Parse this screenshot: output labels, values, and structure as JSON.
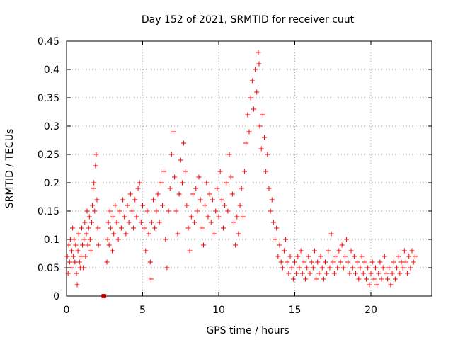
{
  "chart_data": {
    "type": "scatter",
    "title": "Day 152 of 2021, SRMTID for receiver cuut",
    "xlabel": "GPS time / hours",
    "ylabel": "SRMTID / TECUs",
    "xlim": [
      0,
      24
    ],
    "ylim": [
      0,
      0.45
    ],
    "x_ticks": [
      0,
      5,
      10,
      15,
      20
    ],
    "x_tick_labels": [
      "0",
      "5",
      "10",
      "15",
      "20"
    ],
    "y_ticks": [
      0,
      0.05,
      0.1,
      0.15,
      0.2,
      0.25,
      0.3,
      0.35,
      0.4,
      0.45
    ],
    "y_tick_labels": [
      "0",
      "0.05",
      "0.1",
      "0.15",
      "0.2",
      "0.25",
      "0.3",
      "0.35",
      "0.4",
      "0.45"
    ],
    "grid": true,
    "marker": "plus",
    "color": "#ff0000",
    "gap_marker": {
      "x": [
        2.3,
        2.6
      ],
      "y": 0
    },
    "series": [
      {
        "name": "SRMTID",
        "points": [
          [
            0.0,
            0.05
          ],
          [
            0.05,
            0.07
          ],
          [
            0.1,
            0.04
          ],
          [
            0.15,
            0.09
          ],
          [
            0.2,
            0.06
          ],
          [
            0.25,
            0.1
          ],
          [
            0.3,
            0.05
          ],
          [
            0.35,
            0.08
          ],
          [
            0.4,
            0.12
          ],
          [
            0.45,
            0.07
          ],
          [
            0.5,
            0.1
          ],
          [
            0.55,
            0.06
          ],
          [
            0.6,
            0.09
          ],
          [
            0.65,
            0.04
          ],
          [
            0.7,
            0.02
          ],
          [
            0.75,
            0.08
          ],
          [
            0.8,
            0.11
          ],
          [
            0.85,
            0.06
          ],
          [
            0.9,
            0.05
          ],
          [
            0.95,
            0.07
          ],
          [
            1.0,
            0.12
          ],
          [
            1.05,
            0.09
          ],
          [
            1.1,
            0.05
          ],
          [
            1.15,
            0.1
          ],
          [
            1.2,
            0.13
          ],
          [
            1.25,
            0.07
          ],
          [
            1.3,
            0.11
          ],
          [
            1.35,
            0.15
          ],
          [
            1.4,
            0.09
          ],
          [
            1.45,
            0.12
          ],
          [
            1.5,
            0.14
          ],
          [
            1.55,
            0.1
          ],
          [
            1.6,
            0.08
          ],
          [
            1.65,
            0.13
          ],
          [
            1.7,
            0.16
          ],
          [
            1.75,
            0.19
          ],
          [
            1.8,
            0.2
          ],
          [
            1.85,
            0.15
          ],
          [
            1.9,
            0.23
          ],
          [
            1.95,
            0.25
          ],
          [
            2.0,
            0.17
          ],
          [
            2.05,
            0.12
          ],
          [
            2.1,
            0.09
          ],
          [
            2.65,
            0.06
          ],
          [
            2.7,
            0.1
          ],
          [
            2.75,
            0.13
          ],
          [
            2.8,
            0.09
          ],
          [
            2.85,
            0.15
          ],
          [
            2.9,
            0.12
          ],
          [
            3.0,
            0.08
          ],
          [
            3.05,
            0.14
          ],
          [
            3.1,
            0.11
          ],
          [
            3.2,
            0.16
          ],
          [
            3.3,
            0.13
          ],
          [
            3.4,
            0.1
          ],
          [
            3.5,
            0.15
          ],
          [
            3.6,
            0.12
          ],
          [
            3.7,
            0.17
          ],
          [
            3.8,
            0.14
          ],
          [
            3.9,
            0.11
          ],
          [
            4.0,
            0.16
          ],
          [
            4.1,
            0.13
          ],
          [
            4.2,
            0.18
          ],
          [
            4.3,
            0.15
          ],
          [
            4.4,
            0.12
          ],
          [
            4.5,
            0.17
          ],
          [
            4.6,
            0.14
          ],
          [
            4.7,
            0.19
          ],
          [
            4.8,
            0.2
          ],
          [
            4.9,
            0.13
          ],
          [
            5.0,
            0.16
          ],
          [
            5.1,
            0.12
          ],
          [
            5.2,
            0.08
          ],
          [
            5.3,
            0.15
          ],
          [
            5.4,
            0.11
          ],
          [
            5.5,
            0.06
          ],
          [
            5.55,
            0.03
          ],
          [
            5.6,
            0.13
          ],
          [
            5.7,
            0.17
          ],
          [
            5.8,
            0.12
          ],
          [
            5.9,
            0.15
          ],
          [
            6.0,
            0.18
          ],
          [
            6.1,
            0.13
          ],
          [
            6.2,
            0.2
          ],
          [
            6.3,
            0.16
          ],
          [
            6.4,
            0.22
          ],
          [
            6.5,
            0.1
          ],
          [
            6.6,
            0.05
          ],
          [
            6.7,
            0.15
          ],
          [
            6.8,
            0.19
          ],
          [
            6.9,
            0.25
          ],
          [
            7.0,
            0.29
          ],
          [
            7.1,
            0.21
          ],
          [
            7.2,
            0.15
          ],
          [
            7.3,
            0.11
          ],
          [
            7.4,
            0.18
          ],
          [
            7.5,
            0.24
          ],
          [
            7.6,
            0.2
          ],
          [
            7.7,
            0.27
          ],
          [
            7.8,
            0.22
          ],
          [
            7.9,
            0.16
          ],
          [
            8.0,
            0.12
          ],
          [
            8.1,
            0.08
          ],
          [
            8.2,
            0.14
          ],
          [
            8.3,
            0.18
          ],
          [
            8.4,
            0.13
          ],
          [
            8.5,
            0.19
          ],
          [
            8.6,
            0.15
          ],
          [
            8.7,
            0.21
          ],
          [
            8.8,
            0.17
          ],
          [
            8.9,
            0.12
          ],
          [
            9.0,
            0.09
          ],
          [
            9.1,
            0.16
          ],
          [
            9.2,
            0.2
          ],
          [
            9.3,
            0.14
          ],
          [
            9.4,
            0.18
          ],
          [
            9.5,
            0.13
          ],
          [
            9.6,
            0.17
          ],
          [
            9.7,
            0.11
          ],
          [
            9.8,
            0.15
          ],
          [
            9.9,
            0.19
          ],
          [
            10.0,
            0.14
          ],
          [
            10.1,
            0.22
          ],
          [
            10.2,
            0.17
          ],
          [
            10.3,
            0.12
          ],
          [
            10.4,
            0.16
          ],
          [
            10.5,
            0.2
          ],
          [
            10.6,
            0.15
          ],
          [
            10.7,
            0.25
          ],
          [
            10.8,
            0.21
          ],
          [
            10.9,
            0.18
          ],
          [
            11.0,
            0.13
          ],
          [
            11.1,
            0.09
          ],
          [
            11.2,
            0.14
          ],
          [
            11.3,
            0.11
          ],
          [
            11.4,
            0.16
          ],
          [
            11.5,
            0.19
          ],
          [
            11.6,
            0.14
          ],
          [
            11.7,
            0.22
          ],
          [
            11.8,
            0.27
          ],
          [
            11.9,
            0.32
          ],
          [
            12.0,
            0.29
          ],
          [
            12.1,
            0.35
          ],
          [
            12.2,
            0.38
          ],
          [
            12.3,
            0.33
          ],
          [
            12.4,
            0.4
          ],
          [
            12.5,
            0.36
          ],
          [
            12.6,
            0.43
          ],
          [
            12.65,
            0.41
          ],
          [
            12.7,
            0.3
          ],
          [
            12.8,
            0.26
          ],
          [
            12.9,
            0.32
          ],
          [
            13.0,
            0.28
          ],
          [
            13.1,
            0.22
          ],
          [
            13.2,
            0.25
          ],
          [
            13.3,
            0.19
          ],
          [
            13.4,
            0.15
          ],
          [
            13.5,
            0.17
          ],
          [
            13.6,
            0.13
          ],
          [
            13.7,
            0.1
          ],
          [
            13.8,
            0.12
          ],
          [
            13.9,
            0.07
          ],
          [
            14.0,
            0.09
          ],
          [
            14.1,
            0.06
          ],
          [
            14.2,
            0.05
          ],
          [
            14.3,
            0.08
          ],
          [
            14.4,
            0.1
          ],
          [
            14.5,
            0.06
          ],
          [
            14.6,
            0.04
          ],
          [
            14.7,
            0.07
          ],
          [
            14.8,
            0.05
          ],
          [
            14.9,
            0.03
          ],
          [
            15.0,
            0.06
          ],
          [
            15.1,
            0.04
          ],
          [
            15.2,
            0.07
          ],
          [
            15.3,
            0.05
          ],
          [
            15.4,
            0.08
          ],
          [
            15.5,
            0.04
          ],
          [
            15.6,
            0.06
          ],
          [
            15.7,
            0.03
          ],
          [
            15.8,
            0.05
          ],
          [
            15.9,
            0.07
          ],
          [
            16.0,
            0.04
          ],
          [
            16.1,
            0.06
          ],
          [
            16.2,
            0.05
          ],
          [
            16.3,
            0.08
          ],
          [
            16.4,
            0.03
          ],
          [
            16.5,
            0.06
          ],
          [
            16.6,
            0.04
          ],
          [
            16.7,
            0.07
          ],
          [
            16.8,
            0.05
          ],
          [
            16.9,
            0.03
          ],
          [
            17.0,
            0.06
          ],
          [
            17.1,
            0.04
          ],
          [
            17.2,
            0.08
          ],
          [
            17.3,
            0.05
          ],
          [
            17.4,
            0.11
          ],
          [
            17.5,
            0.06
          ],
          [
            17.6,
            0.04
          ],
          [
            17.7,
            0.07
          ],
          [
            17.8,
            0.05
          ],
          [
            17.9,
            0.08
          ],
          [
            18.0,
            0.06
          ],
          [
            18.1,
            0.09
          ],
          [
            18.2,
            0.05
          ],
          [
            18.3,
            0.07
          ],
          [
            18.4,
            0.1
          ],
          [
            18.5,
            0.06
          ],
          [
            18.6,
            0.04
          ],
          [
            18.7,
            0.08
          ],
          [
            18.8,
            0.05
          ],
          [
            18.9,
            0.07
          ],
          [
            19.0,
            0.04
          ],
          [
            19.1,
            0.06
          ],
          [
            19.2,
            0.03
          ],
          [
            19.3,
            0.05
          ],
          [
            19.4,
            0.07
          ],
          [
            19.5,
            0.04
          ],
          [
            19.6,
            0.06
          ],
          [
            19.7,
            0.03
          ],
          [
            19.8,
            0.05
          ],
          [
            19.9,
            0.02
          ],
          [
            20.0,
            0.04
          ],
          [
            20.1,
            0.06
          ],
          [
            20.2,
            0.03
          ],
          [
            20.3,
            0.05
          ],
          [
            20.4,
            0.02
          ],
          [
            20.5,
            0.04
          ],
          [
            20.6,
            0.06
          ],
          [
            20.7,
            0.03
          ],
          [
            20.8,
            0.05
          ],
          [
            20.9,
            0.07
          ],
          [
            21.0,
            0.04
          ],
          [
            21.1,
            0.03
          ],
          [
            21.2,
            0.05
          ],
          [
            21.3,
            0.02
          ],
          [
            21.4,
            0.04
          ],
          [
            21.5,
            0.06
          ],
          [
            21.6,
            0.03
          ],
          [
            21.7,
            0.05
          ],
          [
            21.8,
            0.07
          ],
          [
            21.9,
            0.04
          ],
          [
            22.0,
            0.06
          ],
          [
            22.1,
            0.05
          ],
          [
            22.2,
            0.08
          ],
          [
            22.3,
            0.06
          ],
          [
            22.4,
            0.04
          ],
          [
            22.5,
            0.07
          ],
          [
            22.6,
            0.05
          ],
          [
            22.7,
            0.08
          ],
          [
            22.8,
            0.06
          ],
          [
            22.9,
            0.07
          ]
        ]
      }
    ]
  }
}
